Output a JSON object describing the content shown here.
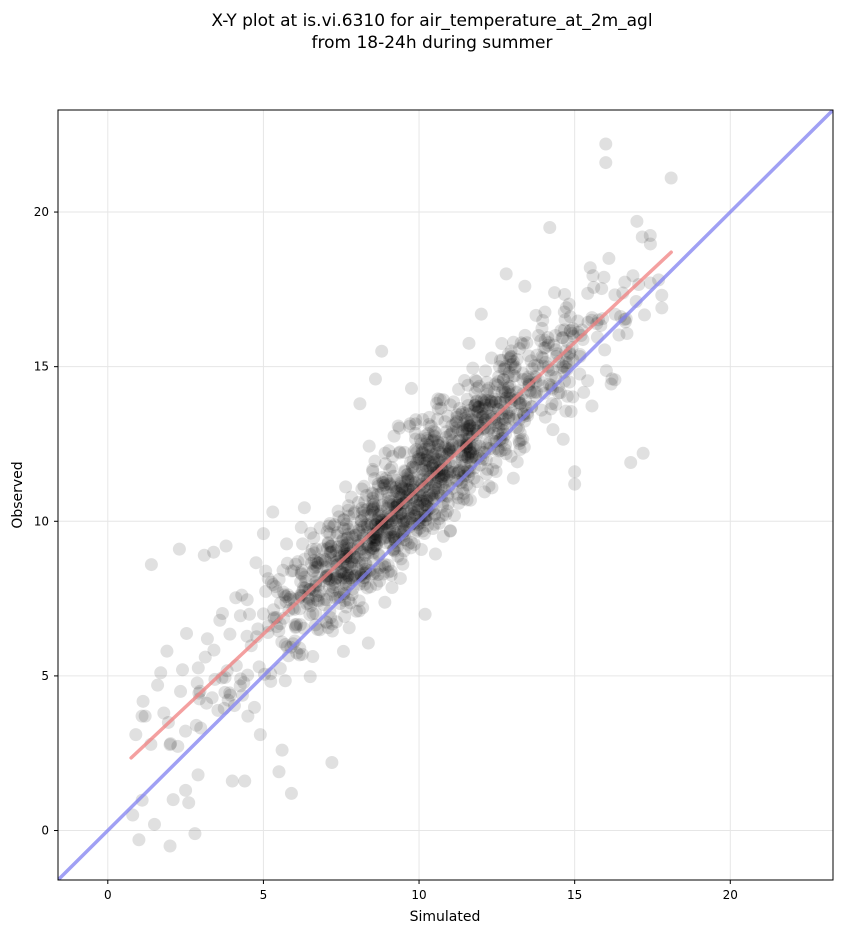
{
  "chart_data": {
    "type": "scatter",
    "title": "X-Y plot at is.vi.6310 for air_temperature_at_2m_agl",
    "subtitle": "from 18-24h during summer",
    "xlabel": "Simulated",
    "ylabel": "Observed",
    "xlim": [
      -1.6,
      23.3
    ],
    "ylim": [
      -1.6,
      23.3
    ],
    "xticks": [
      0,
      5,
      10,
      15,
      20
    ],
    "yticks": [
      0,
      5,
      10,
      15,
      20
    ],
    "grid": true,
    "colors": {
      "points": "#000000",
      "fit_line": "#f08080",
      "one_to_one": "#8080f0",
      "grid": "#e6e6e6"
    },
    "lines": [
      {
        "role": "regression",
        "x": [
          0.75,
          18.1
        ],
        "y": [
          2.35,
          18.7
        ]
      },
      {
        "role": "one-to-one",
        "x": [
          -1.6,
          23.3
        ],
        "y": [
          -1.6,
          23.3
        ]
      }
    ],
    "highlighted_points": [
      [
        0.8,
        0.5
      ],
      [
        0.9,
        3.1
      ],
      [
        1.0,
        -0.3
      ],
      [
        1.1,
        3.7
      ],
      [
        1.2,
        3.7
      ],
      [
        1.4,
        8.6
      ],
      [
        1.5,
        0.2
      ],
      [
        1.6,
        4.7
      ],
      [
        1.7,
        5.1
      ],
      [
        1.8,
        3.8
      ],
      [
        1.9,
        5.8
      ],
      [
        2.0,
        -0.5
      ],
      [
        2.1,
        1.0
      ],
      [
        2.3,
        9.1
      ],
      [
        2.4,
        5.2
      ],
      [
        2.5,
        1.3
      ],
      [
        2.6,
        0.9
      ],
      [
        2.8,
        -0.1
      ],
      [
        2.9,
        1.8
      ],
      [
        3.1,
        8.9
      ],
      [
        3.2,
        6.2
      ],
      [
        3.4,
        9.0
      ],
      [
        3.6,
        6.8
      ],
      [
        3.8,
        9.2
      ],
      [
        4.0,
        1.6
      ],
      [
        4.4,
        1.6
      ],
      [
        4.5,
        3.7
      ],
      [
        4.9,
        3.1
      ],
      [
        5.0,
        9.6
      ],
      [
        5.3,
        10.3
      ],
      [
        5.5,
        1.9
      ],
      [
        5.6,
        2.6
      ],
      [
        5.9,
        1.2
      ],
      [
        7.2,
        2.2
      ],
      [
        8.1,
        13.8
      ],
      [
        8.6,
        14.6
      ],
      [
        8.8,
        15.5
      ],
      [
        14.2,
        19.5
      ],
      [
        15.0,
        11.6
      ],
      [
        15.0,
        11.2
      ],
      [
        16.0,
        22.2
      ],
      [
        16.0,
        21.6
      ],
      [
        16.8,
        11.9
      ],
      [
        17.0,
        19.7
      ],
      [
        17.2,
        12.2
      ],
      [
        18.1,
        21.1
      ],
      [
        17.8,
        16.9
      ],
      [
        12.8,
        18.0
      ],
      [
        13.4,
        17.6
      ],
      [
        12.0,
        16.7
      ],
      [
        15.5,
        18.2
      ],
      [
        16.1,
        18.5
      ]
    ],
    "cloud": {
      "count": 1350,
      "x_distribution": {
        "mean": 9.9,
        "std": 2.9
      },
      "regression": {
        "slope": 0.94,
        "intercept": 1.65
      },
      "residual_std": 1.05,
      "x_range": [
        0.7,
        17.9
      ],
      "marker_opacity": 0.12
    }
  }
}
